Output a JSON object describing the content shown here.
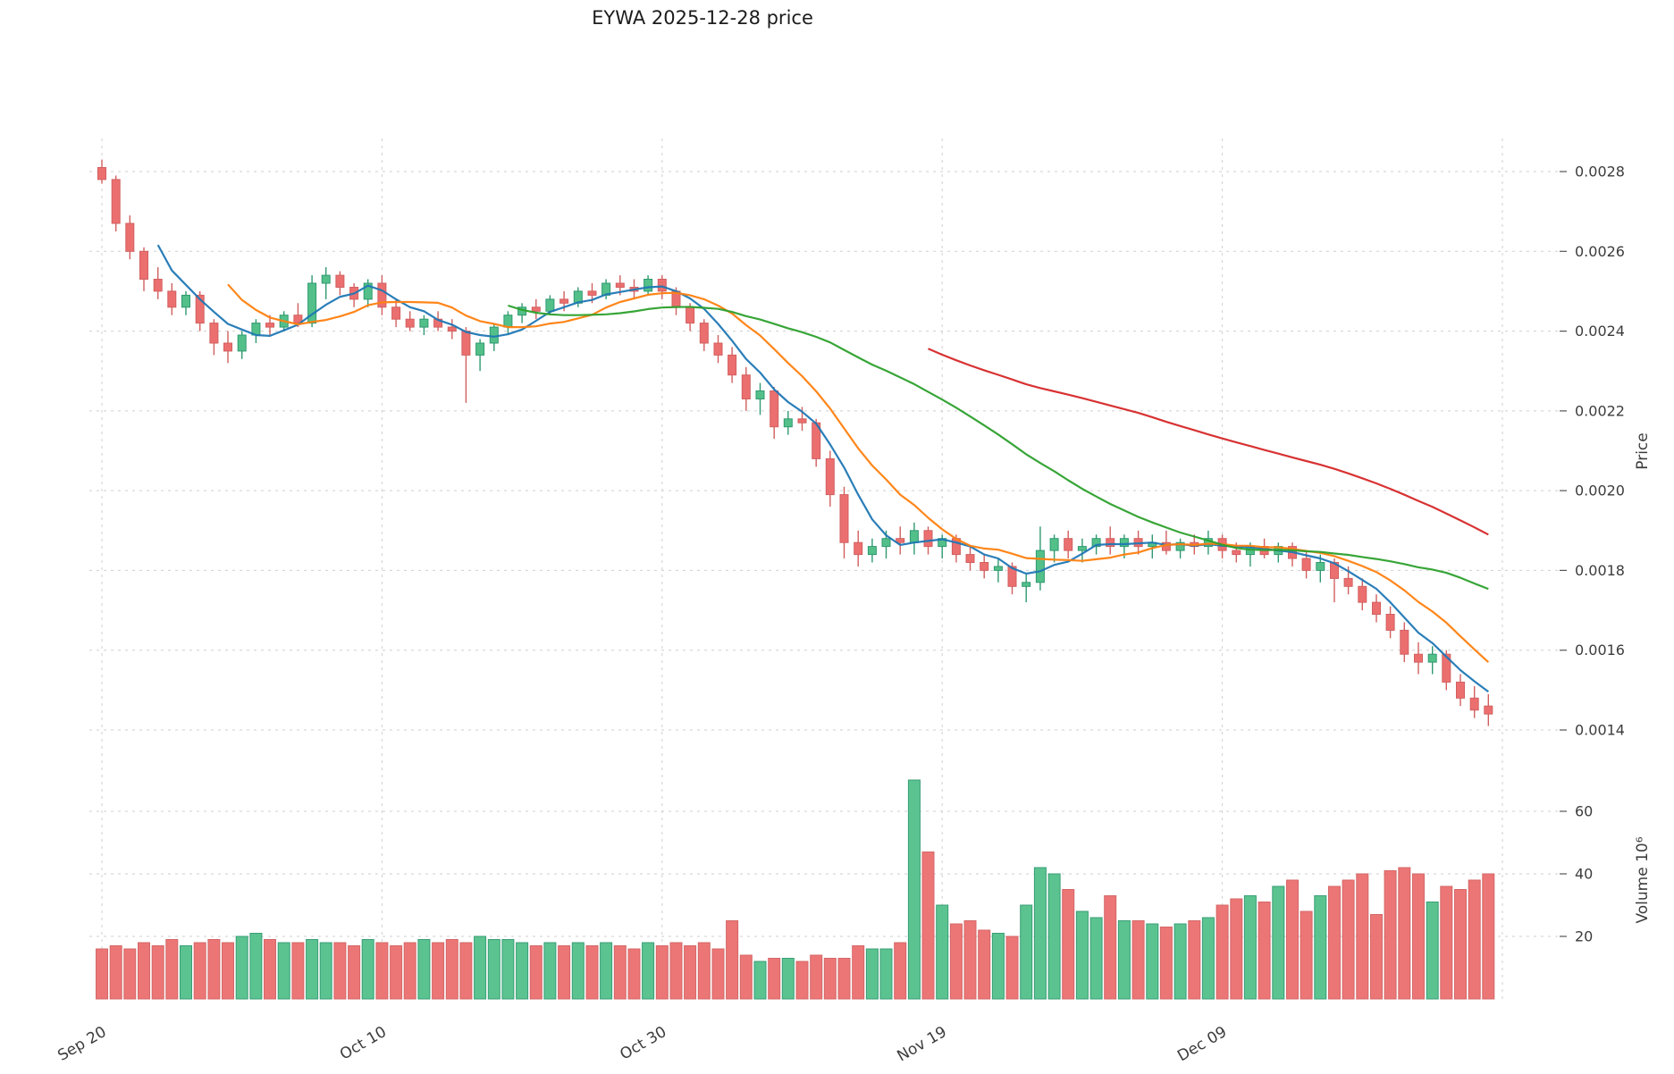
{
  "title": "EYWA  2025-12-28  price",
  "chart_data": {
    "type": "candlestick",
    "title": "EYWA  2025-12-28  price",
    "grid": true,
    "price_axis": {
      "label": "Price",
      "side": "right",
      "min": 0.0014,
      "max": 0.0028,
      "ticks": [
        {
          "v": 0.0028,
          "label": "0.0028"
        },
        {
          "v": 0.0026,
          "label": "0.0026"
        },
        {
          "v": 0.0024,
          "label": "0.0024"
        },
        {
          "v": 0.0022,
          "label": "0.0022"
        },
        {
          "v": 0.002,
          "label": "0.0020"
        },
        {
          "v": 0.0018,
          "label": "0.0018"
        },
        {
          "v": 0.0016,
          "label": "0.0016"
        },
        {
          "v": 0.0014,
          "label": "0.0014"
        }
      ]
    },
    "volume_axis": {
      "label_text": "Volume  10⁶",
      "side": "right",
      "unit_millions": true,
      "ticks": [
        {
          "v": 60,
          "label": "60"
        },
        {
          "v": 40,
          "label": "40"
        },
        {
          "v": 20,
          "label": "20"
        }
      ]
    },
    "x_ticks": [
      {
        "index": 0,
        "label": "Sep 20"
      },
      {
        "index": 20,
        "label": "Oct 10"
      },
      {
        "index": 40,
        "label": "Oct 30"
      },
      {
        "index": 60,
        "label": "Nov 19"
      },
      {
        "index": 80,
        "label": "Dec 09"
      }
    ],
    "extra_gridline_indices": [
      100
    ],
    "moving_averages": [
      {
        "name": "ma-5",
        "period": 5,
        "color": "#1f77b4"
      },
      {
        "name": "ma-10",
        "period": 10,
        "color": "#ff7f0e"
      },
      {
        "name": "ma-30",
        "period": 30,
        "color": "#2ca02c"
      },
      {
        "name": "ma-60",
        "period": 60,
        "color": "#d62728"
      }
    ],
    "colors": {
      "up": "#53c08a",
      "up_edge": "#2f9970",
      "down": "#ec6f6f",
      "down_edge": "#d25f5f",
      "grid": "#cfcfcf",
      "text": "#3c3c3c",
      "background": "#ffffff"
    },
    "columns": [
      "open",
      "high",
      "low",
      "close",
      "volume_millions"
    ],
    "ohlcv": [
      [
        0.00281,
        0.00283,
        0.00277,
        0.00278,
        16
      ],
      [
        0.00278,
        0.00279,
        0.00265,
        0.00267,
        17
      ],
      [
        0.00267,
        0.00269,
        0.00258,
        0.0026,
        16
      ],
      [
        0.0026,
        0.00261,
        0.0025,
        0.00253,
        18
      ],
      [
        0.00253,
        0.00256,
        0.00248,
        0.0025,
        17
      ],
      [
        0.0025,
        0.00252,
        0.00244,
        0.00246,
        19
      ],
      [
        0.00246,
        0.0025,
        0.00244,
        0.00249,
        17
      ],
      [
        0.00249,
        0.0025,
        0.0024,
        0.00242,
        18
      ],
      [
        0.00242,
        0.00243,
        0.00234,
        0.00237,
        19
      ],
      [
        0.00237,
        0.0024,
        0.00232,
        0.00235,
        18
      ],
      [
        0.00235,
        0.0024,
        0.00233,
        0.00239,
        20
      ],
      [
        0.00239,
        0.00243,
        0.00237,
        0.00242,
        21
      ],
      [
        0.00242,
        0.00244,
        0.00239,
        0.00241,
        19
      ],
      [
        0.00241,
        0.00245,
        0.0024,
        0.00244,
        18
      ],
      [
        0.00244,
        0.00247,
        0.00241,
        0.00242,
        18
      ],
      [
        0.00242,
        0.00254,
        0.00241,
        0.00252,
        19
      ],
      [
        0.00252,
        0.00256,
        0.00248,
        0.00254,
        18
      ],
      [
        0.00254,
        0.00255,
        0.00249,
        0.00251,
        18
      ],
      [
        0.00251,
        0.00252,
        0.00246,
        0.00248,
        17
      ],
      [
        0.00248,
        0.00253,
        0.00246,
        0.00252,
        19
      ],
      [
        0.00252,
        0.00254,
        0.00244,
        0.00246,
        18
      ],
      [
        0.00246,
        0.00248,
        0.00241,
        0.00243,
        17
      ],
      [
        0.00243,
        0.00245,
        0.0024,
        0.00241,
        18
      ],
      [
        0.00241,
        0.00244,
        0.00239,
        0.00243,
        19
      ],
      [
        0.00243,
        0.00245,
        0.0024,
        0.00241,
        18
      ],
      [
        0.00241,
        0.00243,
        0.00238,
        0.0024,
        19
      ],
      [
        0.0024,
        0.00241,
        0.00222,
        0.00234,
        18
      ],
      [
        0.00234,
        0.00238,
        0.0023,
        0.00237,
        20
      ],
      [
        0.00237,
        0.00242,
        0.00235,
        0.00241,
        19
      ],
      [
        0.00241,
        0.00245,
        0.00239,
        0.00244,
        19
      ],
      [
        0.00244,
        0.00247,
        0.00242,
        0.00246,
        18
      ],
      [
        0.00246,
        0.00248,
        0.00243,
        0.00245,
        17
      ],
      [
        0.00245,
        0.00249,
        0.00244,
        0.00248,
        18
      ],
      [
        0.00248,
        0.0025,
        0.00245,
        0.00247,
        17
      ],
      [
        0.00247,
        0.00251,
        0.00246,
        0.0025,
        18
      ],
      [
        0.0025,
        0.00252,
        0.00247,
        0.00249,
        17
      ],
      [
        0.00249,
        0.00253,
        0.00248,
        0.00252,
        18
      ],
      [
        0.00252,
        0.00254,
        0.00249,
        0.00251,
        17
      ],
      [
        0.00251,
        0.00253,
        0.00248,
        0.0025,
        16
      ],
      [
        0.0025,
        0.00254,
        0.00249,
        0.00253,
        18
      ],
      [
        0.00253,
        0.00254,
        0.00248,
        0.0025,
        17
      ],
      [
        0.0025,
        0.00251,
        0.00244,
        0.00246,
        18
      ],
      [
        0.00246,
        0.00247,
        0.0024,
        0.00242,
        17
      ],
      [
        0.00242,
        0.00243,
        0.00235,
        0.00237,
        18
      ],
      [
        0.00237,
        0.00239,
        0.00232,
        0.00234,
        16
      ],
      [
        0.00234,
        0.00236,
        0.00227,
        0.00229,
        25
      ],
      [
        0.00229,
        0.00231,
        0.0022,
        0.00223,
        14
      ],
      [
        0.00223,
        0.00227,
        0.00219,
        0.00225,
        12
      ],
      [
        0.00225,
        0.00226,
        0.00213,
        0.00216,
        13
      ],
      [
        0.00216,
        0.0022,
        0.00214,
        0.00218,
        13
      ],
      [
        0.00218,
        0.00221,
        0.00215,
        0.00217,
        12
      ],
      [
        0.00217,
        0.00218,
        0.00206,
        0.00208,
        14
      ],
      [
        0.00208,
        0.0021,
        0.00196,
        0.00199,
        13
      ],
      [
        0.00199,
        0.00201,
        0.00183,
        0.00187,
        13
      ],
      [
        0.00187,
        0.0019,
        0.00181,
        0.00184,
        17
      ],
      [
        0.00184,
        0.00188,
        0.00182,
        0.00186,
        16
      ],
      [
        0.00186,
        0.0019,
        0.00183,
        0.00188,
        16
      ],
      [
        0.00188,
        0.00191,
        0.00184,
        0.00187,
        18
      ],
      [
        0.00187,
        0.00192,
        0.00184,
        0.0019,
        70
      ],
      [
        0.0019,
        0.00191,
        0.00184,
        0.00186,
        47
      ],
      [
        0.00186,
        0.00189,
        0.00183,
        0.00188,
        30
      ],
      [
        0.00188,
        0.00189,
        0.00182,
        0.00184,
        24
      ],
      [
        0.00184,
        0.00186,
        0.0018,
        0.00182,
        25
      ],
      [
        0.00182,
        0.00184,
        0.00178,
        0.0018,
        22
      ],
      [
        0.0018,
        0.00183,
        0.00177,
        0.00181,
        21
      ],
      [
        0.00181,
        0.00182,
        0.00174,
        0.00176,
        20
      ],
      [
        0.00176,
        0.00179,
        0.00172,
        0.00177,
        30
      ],
      [
        0.00177,
        0.00191,
        0.00175,
        0.00185,
        42
      ],
      [
        0.00185,
        0.00189,
        0.00182,
        0.00188,
        40
      ],
      [
        0.00188,
        0.0019,
        0.00183,
        0.00185,
        35
      ],
      [
        0.00185,
        0.00188,
        0.00182,
        0.00186,
        28
      ],
      [
        0.00186,
        0.00189,
        0.00184,
        0.00188,
        26
      ],
      [
        0.00188,
        0.00191,
        0.00184,
        0.00186,
        33
      ],
      [
        0.00186,
        0.00189,
        0.00183,
        0.00188,
        25
      ],
      [
        0.00188,
        0.0019,
        0.00184,
        0.00186,
        25
      ],
      [
        0.00186,
        0.00189,
        0.00183,
        0.00187,
        24
      ],
      [
        0.00187,
        0.0019,
        0.00184,
        0.00185,
        23
      ],
      [
        0.00185,
        0.00188,
        0.00183,
        0.00187,
        24
      ],
      [
        0.00187,
        0.00189,
        0.00184,
        0.00186,
        25
      ],
      [
        0.00186,
        0.0019,
        0.00184,
        0.00188,
        26
      ],
      [
        0.00188,
        0.00189,
        0.00183,
        0.00185,
        30
      ],
      [
        0.00185,
        0.00187,
        0.00182,
        0.00184,
        32
      ],
      [
        0.00184,
        0.00187,
        0.00181,
        0.00186,
        33
      ],
      [
        0.00186,
        0.00188,
        0.00183,
        0.00184,
        31
      ],
      [
        0.00184,
        0.00187,
        0.00182,
        0.00186,
        36
      ],
      [
        0.00186,
        0.00187,
        0.00181,
        0.00183,
        38
      ],
      [
        0.00183,
        0.00185,
        0.00178,
        0.0018,
        28
      ],
      [
        0.0018,
        0.00184,
        0.00177,
        0.00182,
        33
      ],
      [
        0.00182,
        0.00183,
        0.00172,
        0.00178,
        36
      ],
      [
        0.00178,
        0.00181,
        0.00174,
        0.00176,
        38
      ],
      [
        0.00176,
        0.00178,
        0.0017,
        0.00172,
        40
      ],
      [
        0.00172,
        0.00174,
        0.00167,
        0.00169,
        27
      ],
      [
        0.00169,
        0.00171,
        0.00163,
        0.00165,
        41
      ],
      [
        0.00165,
        0.00167,
        0.00157,
        0.00159,
        42
      ],
      [
        0.00159,
        0.00162,
        0.00154,
        0.00157,
        40
      ],
      [
        0.00157,
        0.00161,
        0.00154,
        0.00159,
        31
      ],
      [
        0.00159,
        0.0016,
        0.0015,
        0.00152,
        36
      ],
      [
        0.00152,
        0.00154,
        0.00146,
        0.00148,
        35
      ],
      [
        0.00148,
        0.00151,
        0.00143,
        0.00145,
        38
      ],
      [
        0.00146,
        0.00149,
        0.00141,
        0.00144,
        40
      ]
    ]
  }
}
